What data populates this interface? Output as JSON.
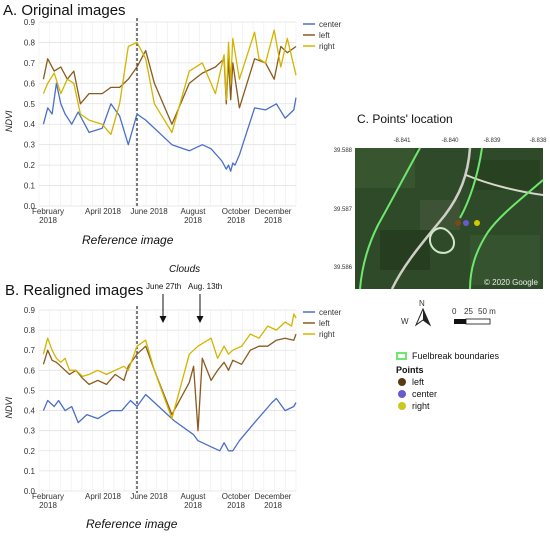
{
  "panel_a": {
    "title": "A. Original images",
    "reference_label": "Reference image"
  },
  "panel_b": {
    "title": "B. Realigned images",
    "reference_label": "Reference image",
    "clouds_label": "Clouds",
    "annotation_1": "June 27th",
    "annotation_2": "Aug. 13th"
  },
  "panel_c": {
    "title": "C. Points' location",
    "top_ticks": [
      "-8.841",
      "-8.840",
      "-8.839",
      "-8.838"
    ],
    "left_ticks": [
      "39.588",
      "39.587",
      "39.586"
    ],
    "attribution": "© 2020 Google",
    "north_label": "N",
    "west_label": "W",
    "scale_labels": [
      "0",
      "25",
      "50 m"
    ],
    "legend_fuelbreak": "Fuelbreak boundaries",
    "legend_points_title": "Points",
    "legend_points": [
      "left",
      "center",
      "right"
    ]
  },
  "colors": {
    "center": "#4a6fc9",
    "left": "#8a5a1e",
    "right": "#d4b400",
    "fuelbreak": "#6ee86e",
    "map_bg": "#2e4a26"
  },
  "chart_data": [
    {
      "type": "line",
      "title": "A. Original images",
      "ylabel": "NDVI",
      "xlabel": "",
      "ylim": [
        0,
        0.9
      ],
      "yticks": [
        "0.0",
        "0.1",
        "0.2",
        "0.3",
        "0.4",
        "0.5",
        "0.6",
        "0.7",
        "0.8",
        "0.9"
      ],
      "xticks": [
        "February\n2018",
        "April 2018",
        "June 2018",
        "August\n2018",
        "October\n2018",
        "December\n2018"
      ],
      "xlim": [
        1.1,
        12.9
      ],
      "reference_x": 5.6,
      "legend": "top-right",
      "series": [
        {
          "name": "center",
          "color_key": "center",
          "x": [
            1.3,
            1.5,
            1.7,
            1.9,
            2.1,
            2.3,
            2.6,
            2.9,
            3.4,
            4.0,
            4.4,
            4.8,
            5.2,
            5.6,
            6.0,
            7.2,
            8.0,
            8.6,
            9.0,
            9.5,
            9.7,
            9.8,
            9.9,
            10.0,
            10.1,
            10.3,
            11.0,
            11.5,
            12.0,
            12.4,
            12.8,
            12.9
          ],
          "y": [
            0.4,
            0.48,
            0.45,
            0.6,
            0.5,
            0.45,
            0.4,
            0.46,
            0.36,
            0.38,
            0.5,
            0.44,
            0.3,
            0.45,
            0.42,
            0.3,
            0.27,
            0.3,
            0.28,
            0.22,
            0.18,
            0.2,
            0.17,
            0.21,
            0.2,
            0.25,
            0.48,
            0.47,
            0.5,
            0.43,
            0.47,
            0.53
          ]
        },
        {
          "name": "left",
          "color_key": "left",
          "x": [
            1.3,
            1.5,
            1.8,
            2.1,
            2.4,
            2.7,
            3.0,
            3.4,
            4.0,
            4.4,
            4.8,
            5.2,
            5.6,
            6.0,
            6.4,
            7.2,
            8.0,
            8.6,
            9.2,
            9.6,
            9.7,
            9.8,
            9.9,
            10.0,
            10.3,
            11.0,
            11.5,
            11.9,
            12.2,
            12.5,
            12.9
          ],
          "y": [
            0.62,
            0.72,
            0.66,
            0.68,
            0.62,
            0.66,
            0.5,
            0.55,
            0.55,
            0.58,
            0.58,
            0.62,
            0.68,
            0.76,
            0.6,
            0.4,
            0.6,
            0.65,
            0.68,
            0.72,
            0.5,
            0.72,
            0.52,
            0.7,
            0.48,
            0.72,
            0.7,
            0.62,
            0.78,
            0.75,
            0.78
          ]
        },
        {
          "name": "right",
          "color_key": "right",
          "x": [
            1.3,
            1.5,
            1.8,
            2.1,
            2.4,
            2.7,
            3.0,
            3.4,
            4.0,
            4.4,
            4.8,
            5.2,
            5.6,
            6.0,
            6.4,
            7.2,
            8.0,
            8.6,
            9.2,
            9.6,
            9.7,
            9.8,
            9.9,
            10.0,
            10.3,
            11.0,
            11.2,
            11.5,
            11.9,
            12.2,
            12.5,
            12.9
          ],
          "y": [
            0.55,
            0.6,
            0.65,
            0.55,
            0.62,
            0.6,
            0.45,
            0.42,
            0.4,
            0.35,
            0.5,
            0.78,
            0.8,
            0.72,
            0.5,
            0.36,
            0.66,
            0.7,
            0.55,
            0.74,
            0.52,
            0.8,
            0.6,
            0.82,
            0.62,
            0.85,
            0.72,
            0.7,
            0.86,
            0.68,
            0.82,
            0.64
          ]
        }
      ]
    },
    {
      "type": "line",
      "title": "B. Realigned images",
      "ylabel": "NDVI",
      "xlabel": "",
      "ylim": [
        0,
        0.9
      ],
      "yticks": [
        "0.0",
        "0.1",
        "0.2",
        "0.3",
        "0.4",
        "0.5",
        "0.6",
        "0.7",
        "0.8",
        "0.9"
      ],
      "xticks": [
        "February\n2018",
        "April 2018",
        "June 2018",
        "August\n2018",
        "October\n2018",
        "December\n2018"
      ],
      "xlim": [
        1.1,
        12.9
      ],
      "reference_x": 5.6,
      "legend": "top-right",
      "series": [
        {
          "name": "center",
          "color_key": "center",
          "x": [
            1.3,
            1.5,
            1.8,
            2.0,
            2.3,
            2.6,
            2.9,
            3.3,
            3.8,
            4.4,
            4.9,
            5.3,
            5.6,
            6.0,
            6.4,
            7.3,
            8.2,
            8.4,
            8.6,
            9.0,
            9.4,
            9.6,
            9.8,
            10.0,
            10.3,
            11.0,
            11.8,
            12.0,
            12.4,
            12.8,
            12.9
          ],
          "y": [
            0.4,
            0.45,
            0.42,
            0.45,
            0.4,
            0.42,
            0.34,
            0.38,
            0.36,
            0.4,
            0.4,
            0.45,
            0.42,
            0.48,
            0.44,
            0.35,
            0.28,
            0.25,
            0.24,
            0.22,
            0.2,
            0.24,
            0.2,
            0.2,
            0.25,
            0.34,
            0.44,
            0.46,
            0.4,
            0.42,
            0.44
          ]
        },
        {
          "name": "left",
          "color_key": "left",
          "x": [
            1.3,
            1.5,
            1.7,
            1.9,
            2.1,
            2.3,
            2.5,
            2.8,
            3.1,
            3.4,
            3.8,
            4.2,
            4.6,
            5.0,
            5.2,
            5.6,
            6.0,
            6.4,
            7.2,
            8.0,
            8.2,
            8.4,
            8.6,
            9.0,
            9.3,
            9.6,
            9.8,
            10.0,
            10.4,
            10.8,
            11.2,
            11.6,
            12.0,
            12.4,
            12.8,
            12.9
          ],
          "y": [
            0.63,
            0.7,
            0.65,
            0.64,
            0.62,
            0.6,
            0.58,
            0.6,
            0.56,
            0.53,
            0.55,
            0.53,
            0.58,
            0.55,
            0.62,
            0.68,
            0.72,
            0.6,
            0.38,
            0.54,
            0.62,
            0.3,
            0.66,
            0.55,
            0.6,
            0.64,
            0.6,
            0.65,
            0.63,
            0.7,
            0.72,
            0.72,
            0.75,
            0.76,
            0.75,
            0.78
          ]
        },
        {
          "name": "right",
          "color_key": "right",
          "x": [
            1.3,
            1.5,
            1.7,
            1.9,
            2.1,
            2.3,
            2.5,
            2.8,
            3.1,
            3.4,
            3.8,
            4.2,
            4.6,
            5.0,
            5.2,
            5.6,
            6.0,
            6.4,
            7.2,
            8.0,
            8.4,
            8.7,
            9.0,
            9.3,
            9.6,
            9.8,
            10.0,
            10.4,
            10.8,
            11.2,
            11.6,
            12.0,
            12.4,
            12.7,
            12.8,
            12.9
          ],
          "y": [
            0.68,
            0.76,
            0.7,
            0.66,
            0.64,
            0.66,
            0.6,
            0.6,
            0.57,
            0.58,
            0.6,
            0.58,
            0.6,
            0.62,
            0.6,
            0.72,
            0.75,
            0.6,
            0.36,
            0.68,
            0.72,
            0.74,
            0.76,
            0.66,
            0.72,
            0.68,
            0.7,
            0.72,
            0.78,
            0.76,
            0.82,
            0.8,
            0.84,
            0.82,
            0.88,
            0.86
          ]
        }
      ]
    }
  ]
}
